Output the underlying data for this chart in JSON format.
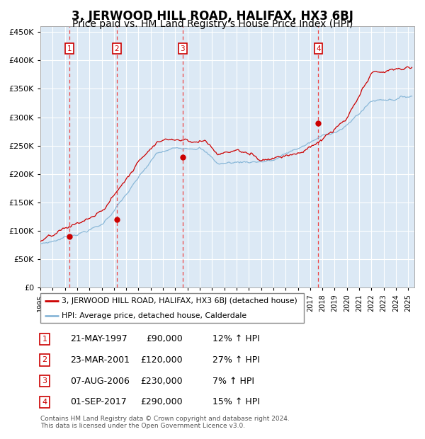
{
  "title": "3, JERWOOD HILL ROAD, HALIFAX, HX3 6BJ",
  "subtitle": "Price paid vs. HM Land Registry's House Price Index (HPI)",
  "title_fontsize": 12,
  "subtitle_fontsize": 10,
  "background_color": "#ffffff",
  "plot_bg_color": "#dce9f5",
  "grid_color": "#ffffff",
  "hpi_line_color": "#8ab8d8",
  "price_line_color": "#cc0000",
  "sale_marker_color": "#cc0000",
  "dashed_line_color": "#ee4444",
  "ylim": [
    0,
    460000
  ],
  "yticks": [
    0,
    50000,
    100000,
    150000,
    200000,
    250000,
    300000,
    350000,
    400000,
    450000
  ],
  "sale_events": [
    {
      "label": "1",
      "date_x": 1997.38,
      "price": 90000,
      "date_str": "21-MAY-1997",
      "pct": "12%",
      "dir": "↑"
    },
    {
      "label": "2",
      "date_x": 2001.23,
      "price": 120000,
      "date_str": "23-MAR-2001",
      "pct": "27%",
      "dir": "↑"
    },
    {
      "label": "3",
      "date_x": 2006.6,
      "price": 230000,
      "date_str": "07-AUG-2006",
      "pct": "7%",
      "dir": "↑"
    },
    {
      "label": "4",
      "date_x": 2017.67,
      "price": 290000,
      "date_str": "01-SEP-2017",
      "pct": "15%",
      "dir": "↑"
    }
  ],
  "legend_line1": "3, JERWOOD HILL ROAD, HALIFAX, HX3 6BJ (detached house)",
  "legend_line2": "HPI: Average price, detached house, Calderdale",
  "footer_line1": "Contains HM Land Registry data © Crown copyright and database right 2024.",
  "footer_line2": "This data is licensed under the Open Government Licence v3.0.",
  "xmin": 1995.0,
  "xmax": 2025.5
}
